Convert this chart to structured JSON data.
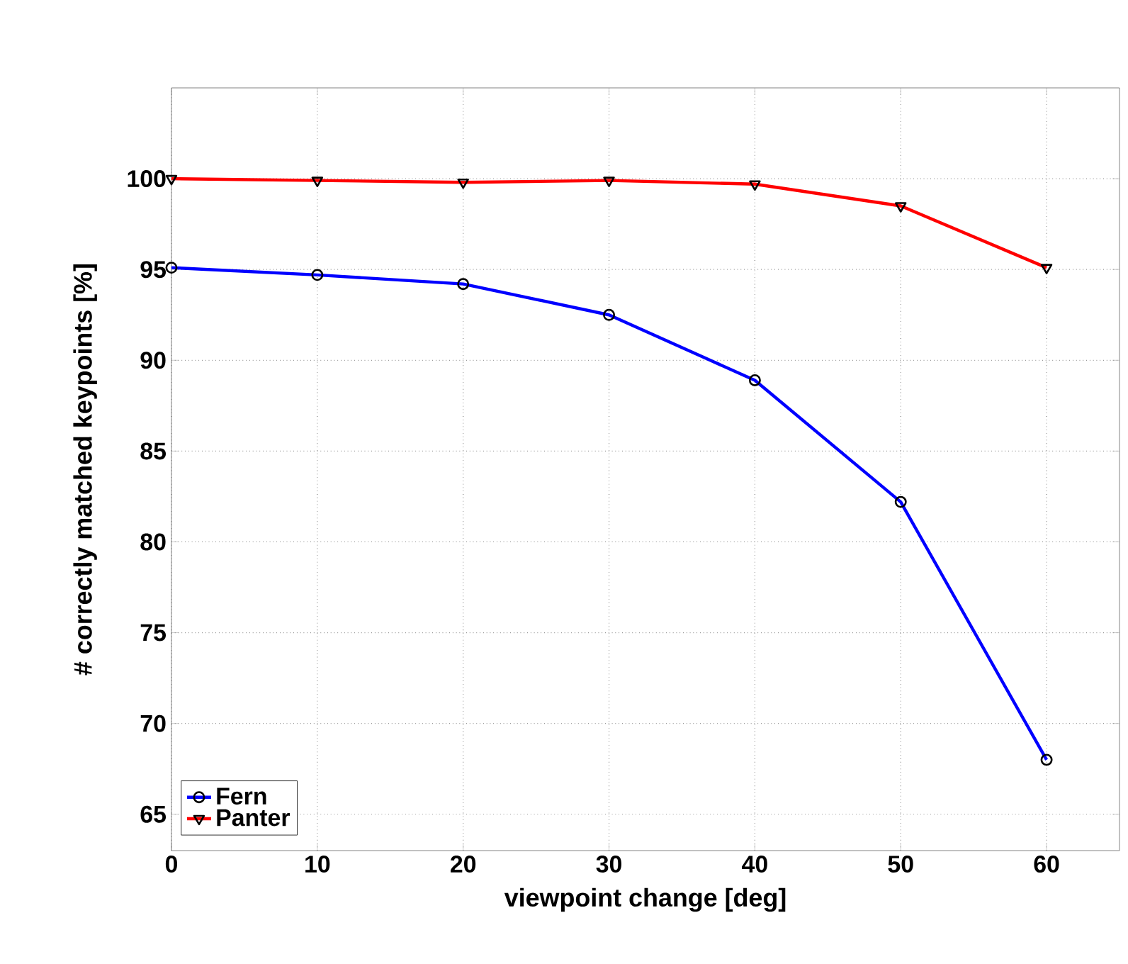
{
  "chart_data": {
    "type": "line",
    "xlabel": "viewpoint change [deg]",
    "ylabel": "# correctly matched keypoints [%]",
    "x": [
      0,
      10,
      20,
      30,
      40,
      50,
      60
    ],
    "series": [
      {
        "name": "Fern",
        "color": "#0000ff",
        "marker": "circle",
        "values": [
          95.1,
          94.7,
          94.2,
          92.5,
          88.9,
          82.2,
          68.0
        ]
      },
      {
        "name": "Panter",
        "color": "#ff0000",
        "marker": "triangle",
        "values": [
          100.0,
          99.9,
          99.8,
          99.9,
          99.7,
          98.5,
          95.1
        ]
      }
    ],
    "xlim": [
      0,
      65
    ],
    "ylim": [
      63,
      105
    ],
    "xticks": [
      0,
      10,
      20,
      30,
      40,
      50,
      60
    ],
    "yticks": [
      65,
      70,
      75,
      80,
      85,
      90,
      95,
      100
    ],
    "grid": true,
    "legend": "bottom left",
    "line_style": "solid"
  }
}
